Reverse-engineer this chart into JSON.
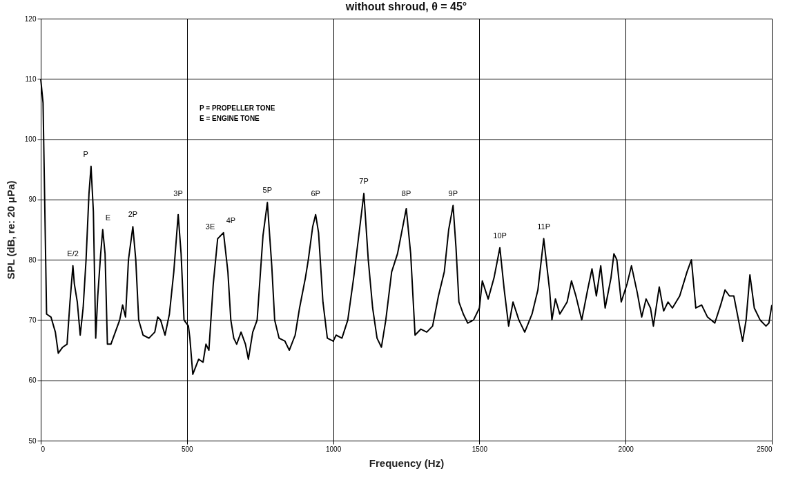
{
  "chart_data": {
    "type": "line",
    "title": "without shroud, θ = 45°",
    "xlabel": "Frequency (Hz)",
    "ylabel": "SPL (dB, re: 20 μPa)",
    "x": [
      0,
      8,
      20,
      35,
      50,
      60,
      75,
      90,
      100,
      110,
      115,
      125,
      135,
      145,
      155,
      165,
      172,
      180,
      188,
      195,
      205,
      212,
      220,
      228,
      240,
      255,
      270,
      280,
      290,
      300,
      315,
      325,
      335,
      350,
      370,
      390,
      400,
      410,
      425,
      440,
      455,
      470,
      480,
      490,
      505,
      510,
      520,
      540,
      555,
      565,
      575,
      590,
      605,
      615,
      625,
      640,
      650,
      660,
      670,
      685,
      700,
      710,
      725,
      740,
      760,
      775,
      790,
      800,
      815,
      835,
      850,
      870,
      885,
      905,
      915,
      930,
      940,
      950,
      965,
      980,
      1000,
      1010,
      1030,
      1050,
      1070,
      1090,
      1105,
      1120,
      1135,
      1150,
      1165,
      1180,
      1200,
      1220,
      1240,
      1250,
      1265,
      1280,
      1300,
      1320,
      1340,
      1360,
      1380,
      1395,
      1410,
      1420,
      1430,
      1445,
      1460,
      1480,
      1500,
      1510,
      1530,
      1550,
      1570,
      1585,
      1600,
      1615,
      1635,
      1655,
      1680,
      1700,
      1720,
      1740,
      1748,
      1760,
      1775,
      1800,
      1815,
      1830,
      1850,
      1870,
      1885,
      1900,
      1915,
      1930,
      1950,
      1960,
      1970,
      1985,
      2005,
      2020,
      2040,
      2055,
      2070,
      2085,
      2095,
      2115,
      2130,
      2145,
      2160,
      2185,
      2210,
      2225,
      2240,
      2260,
      2280,
      2305,
      2325,
      2340,
      2355,
      2370,
      2390,
      2400,
      2412,
      2425,
      2440,
      2460,
      2480,
      2490,
      2500
    ],
    "series": [
      {
        "color": "#000000",
        "values": [
          110,
          106,
          71,
          70.5,
          68,
          64.5,
          65.5,
          66,
          73,
          79,
          76,
          73,
          67.5,
          72,
          80,
          91,
          95.5,
          88,
          67,
          74,
          81,
          85,
          81,
          66,
          66,
          68,
          70,
          72.5,
          70.5,
          80,
          85.5,
          80,
          70,
          67.5,
          67,
          68,
          70.5,
          70,
          67.5,
          71,
          78,
          87.5,
          81,
          70,
          69,
          67,
          61,
          63.5,
          63,
          66,
          65,
          76,
          83.5,
          84,
          84.5,
          78,
          70,
          67,
          66,
          68,
          66,
          63.5,
          68,
          70,
          84,
          89.5,
          79,
          70,
          67,
          66.5,
          65,
          67.5,
          72,
          77,
          80,
          85.5,
          87.5,
          84.5,
          73,
          67,
          66.5,
          67.5,
          67,
          70,
          77,
          85,
          91,
          80,
          72,
          67,
          65.5,
          70,
          78,
          81,
          86,
          88.5,
          81,
          67.5,
          68.5,
          68,
          69,
          74,
          78,
          85,
          89,
          82,
          73,
          71,
          69.5,
          70,
          72,
          76.5,
          73.5,
          77,
          82,
          75,
          69,
          73,
          70,
          68,
          71,
          75,
          83.5,
          75,
          70,
          73.5,
          71,
          73,
          76.5,
          74,
          70,
          75,
          78.5,
          74,
          79,
          72,
          77,
          81,
          80,
          73,
          76,
          79,
          74.5,
          70.5,
          73.5,
          72,
          69,
          75.5,
          71.5,
          73,
          72,
          74,
          78,
          80,
          72,
          72.5,
          70.5,
          69.5,
          72.5,
          75,
          74,
          74,
          69,
          66.5,
          70,
          77.5,
          72,
          70,
          69,
          69.5,
          72.5
        ]
      }
    ],
    "xlim": [
      0,
      2500
    ],
    "xticks": [
      0,
      500,
      1000,
      1500,
      2000,
      2500
    ],
    "ylim": [
      50,
      120
    ],
    "yticks": [
      50,
      60,
      70,
      80,
      90,
      100,
      110,
      120
    ],
    "grid": true,
    "marker": "none",
    "line_style": "solid",
    "annotations": [
      "P = PROPELLER TONE",
      "E = ENGINE TONE",
      {
        "text": "E/2",
        "x": 110,
        "y": 79
      },
      {
        "text": "P",
        "x": 172,
        "y": 95.5
      },
      {
        "text": "E",
        "x": 212,
        "y": 85
      },
      {
        "text": "2P",
        "x": 315,
        "y": 85.5
      },
      {
        "text": "3P",
        "x": 470,
        "y": 87.5
      },
      {
        "text": "3E",
        "x": 605,
        "y": 83.5
      },
      {
        "text": "4P",
        "x": 625,
        "y": 84.5
      },
      {
        "text": "5P",
        "x": 775,
        "y": 89.5
      },
      {
        "text": "6P",
        "x": 940,
        "y": 87.5
      },
      {
        "text": "7P",
        "x": 1105,
        "y": 91
      },
      {
        "text": "8P",
        "x": 1250,
        "y": 88.5
      },
      {
        "text": "9P",
        "x": 1410,
        "y": 89
      },
      {
        "text": "10P",
        "x": 1570,
        "y": 82
      },
      {
        "text": "11P",
        "x": 1720,
        "y": 83.5
      }
    ]
  }
}
